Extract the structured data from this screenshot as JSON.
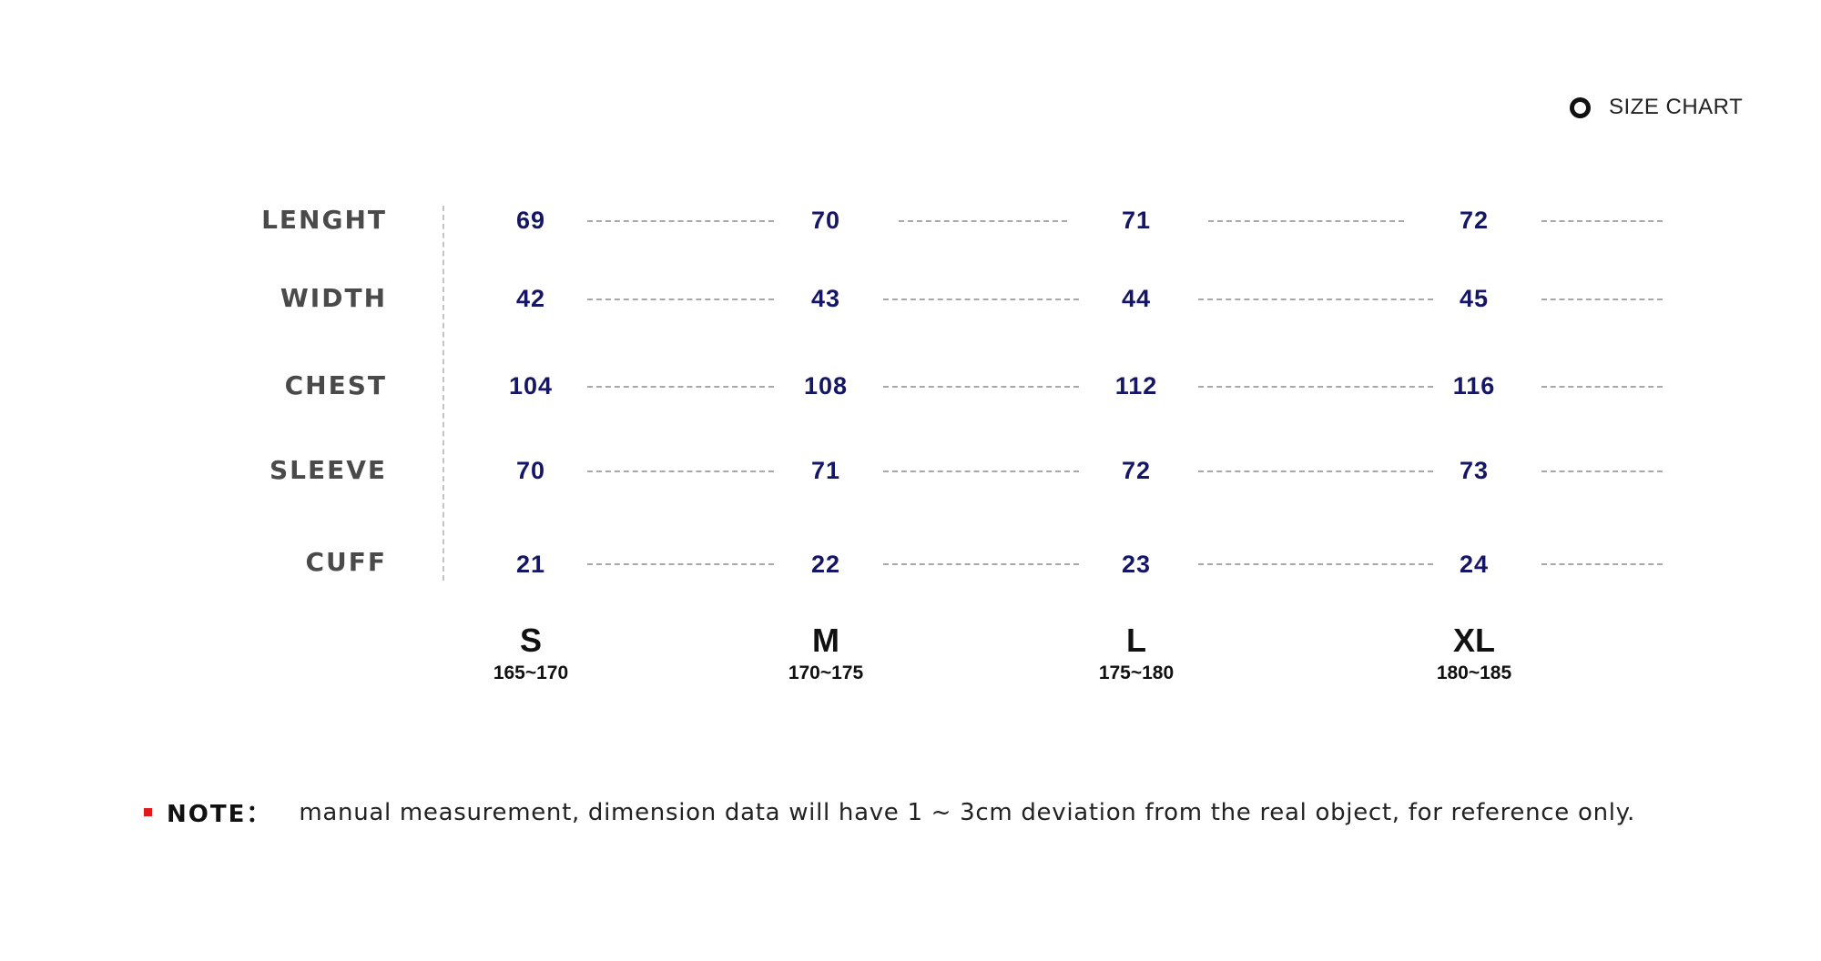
{
  "header": {
    "title": "SIZE CHART",
    "icon": "ring-icon"
  },
  "rows": [
    {
      "label": "LENGHT",
      "values": [
        "69",
        "70",
        "71",
        "72"
      ]
    },
    {
      "label": "WIDTH",
      "values": [
        "42",
        "43",
        "44",
        "45"
      ]
    },
    {
      "label": "CHEST",
      "values": [
        "104",
        "108",
        "112",
        "116"
      ]
    },
    {
      "label": "SLEEVE",
      "values": [
        "70",
        "71",
        "72",
        "73"
      ]
    },
    {
      "label": "CUFF",
      "values": [
        "21",
        "22",
        "23",
        "24"
      ]
    }
  ],
  "sizes": [
    {
      "name": "S",
      "range": "165~170"
    },
    {
      "name": "M",
      "range": "170~175"
    },
    {
      "name": "L",
      "range": "175~180"
    },
    {
      "name": "XL",
      "range": "180~185"
    }
  ],
  "note": {
    "label": "NOTE：",
    "text": "manual measurement, dimension data will have 1 ~ 3cm deviation from the real object, for reference only."
  },
  "colors": {
    "value_text": "#161667",
    "row_label_text": "#4a4a4a",
    "note_marker": "#e01a1a"
  }
}
